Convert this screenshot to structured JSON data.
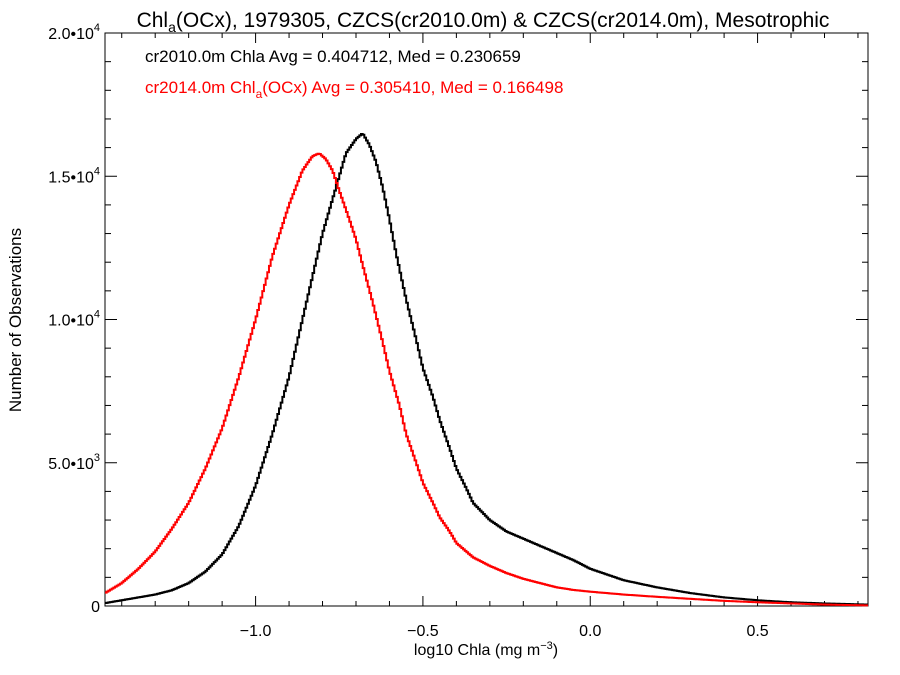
{
  "chart_data": {
    "type": "line",
    "title": {
      "main": "Chl",
      "sub": "a",
      "rest": "(OCx), 1979305, CZCS(cr2010.0m) & CZCS(cr2014.0m), Mesotrophic"
    },
    "xlabel": {
      "main": "log10 Chla (mg m",
      "sup": "−3",
      "end": ")"
    },
    "ylabel": "Number of Observations",
    "xlim": [
      -1.45,
      0.83
    ],
    "ylim": [
      0,
      20000
    ],
    "xticks": [
      {
        "value": -1.0,
        "label": "−1.0"
      },
      {
        "value": -0.5,
        "label": "−0.5"
      },
      {
        "value": 0.0,
        "label": "0.0"
      },
      {
        "value": 0.5,
        "label": "0.5"
      }
    ],
    "yticks": [
      {
        "value": 0,
        "mant": "0",
        "exp": ""
      },
      {
        "value": 5000,
        "mant": "5.0•10",
        "exp": "3"
      },
      {
        "value": 10000,
        "mant": "1.0•10",
        "exp": "4"
      },
      {
        "value": 15000,
        "mant": "1.5•10",
        "exp": "4"
      },
      {
        "value": 20000,
        "mant": "2.0•10",
        "exp": "4"
      }
    ],
    "annotations": [
      {
        "main": "cr2010.0m Chla Avg = 0.404712, Med = 0.230659",
        "color": "#000000"
      },
      {
        "main": "cr2014.0m Chl",
        "sub": "a",
        "rest": "(OCx) Avg = 0.305410, Med = 0.166498",
        "color": "#ff0000"
      }
    ],
    "series": [
      {
        "color": "#000000",
        "x": [
          -1.45,
          -1.4,
          -1.35,
          -1.3,
          -1.25,
          -1.2,
          -1.15,
          -1.1,
          -1.05,
          -1.0,
          -0.95,
          -0.9,
          -0.85,
          -0.8,
          -0.76,
          -0.73,
          -0.7,
          -0.68,
          -0.66,
          -0.64,
          -0.62,
          -0.6,
          -0.58,
          -0.55,
          -0.52,
          -0.5,
          -0.47,
          -0.45,
          -0.42,
          -0.4,
          -0.37,
          -0.35,
          -0.3,
          -0.25,
          -0.2,
          -0.15,
          -0.1,
          -0.05,
          0.0,
          0.05,
          0.1,
          0.2,
          0.3,
          0.4,
          0.5,
          0.6,
          0.7,
          0.83
        ],
        "y": [
          100,
          200,
          300,
          400,
          550,
          800,
          1200,
          1800,
          2800,
          4200,
          6000,
          8000,
          10500,
          13000,
          14600,
          15800,
          16300,
          16500,
          16100,
          15500,
          14600,
          13500,
          12300,
          10700,
          9300,
          8300,
          7300,
          6500,
          5500,
          4800,
          4100,
          3600,
          3000,
          2600,
          2350,
          2100,
          1850,
          1600,
          1300,
          1100,
          900,
          650,
          450,
          300,
          200,
          130,
          90,
          50
        ]
      },
      {
        "color": "#ff0000",
        "x": [
          -1.45,
          -1.4,
          -1.35,
          -1.3,
          -1.25,
          -1.2,
          -1.15,
          -1.1,
          -1.05,
          -1.0,
          -0.95,
          -0.9,
          -0.86,
          -0.83,
          -0.81,
          -0.79,
          -0.77,
          -0.75,
          -0.72,
          -0.7,
          -0.68,
          -0.65,
          -0.62,
          -0.6,
          -0.57,
          -0.55,
          -0.52,
          -0.5,
          -0.47,
          -0.45,
          -0.42,
          -0.4,
          -0.35,
          -0.3,
          -0.25,
          -0.2,
          -0.15,
          -0.1,
          -0.05,
          0.0,
          0.1,
          0.2,
          0.3,
          0.4,
          0.5,
          0.6,
          0.7,
          0.83
        ],
        "y": [
          450,
          800,
          1300,
          1900,
          2700,
          3600,
          4800,
          6200,
          8000,
          10000,
          12200,
          14000,
          15200,
          15700,
          15800,
          15600,
          15200,
          14500,
          13500,
          12800,
          11900,
          10600,
          9200,
          8200,
          7000,
          6000,
          5000,
          4300,
          3600,
          3100,
          2600,
          2200,
          1700,
          1400,
          1150,
          950,
          800,
          650,
          560,
          500,
          400,
          320,
          250,
          180,
          130,
          90,
          50,
          20
        ]
      }
    ]
  }
}
